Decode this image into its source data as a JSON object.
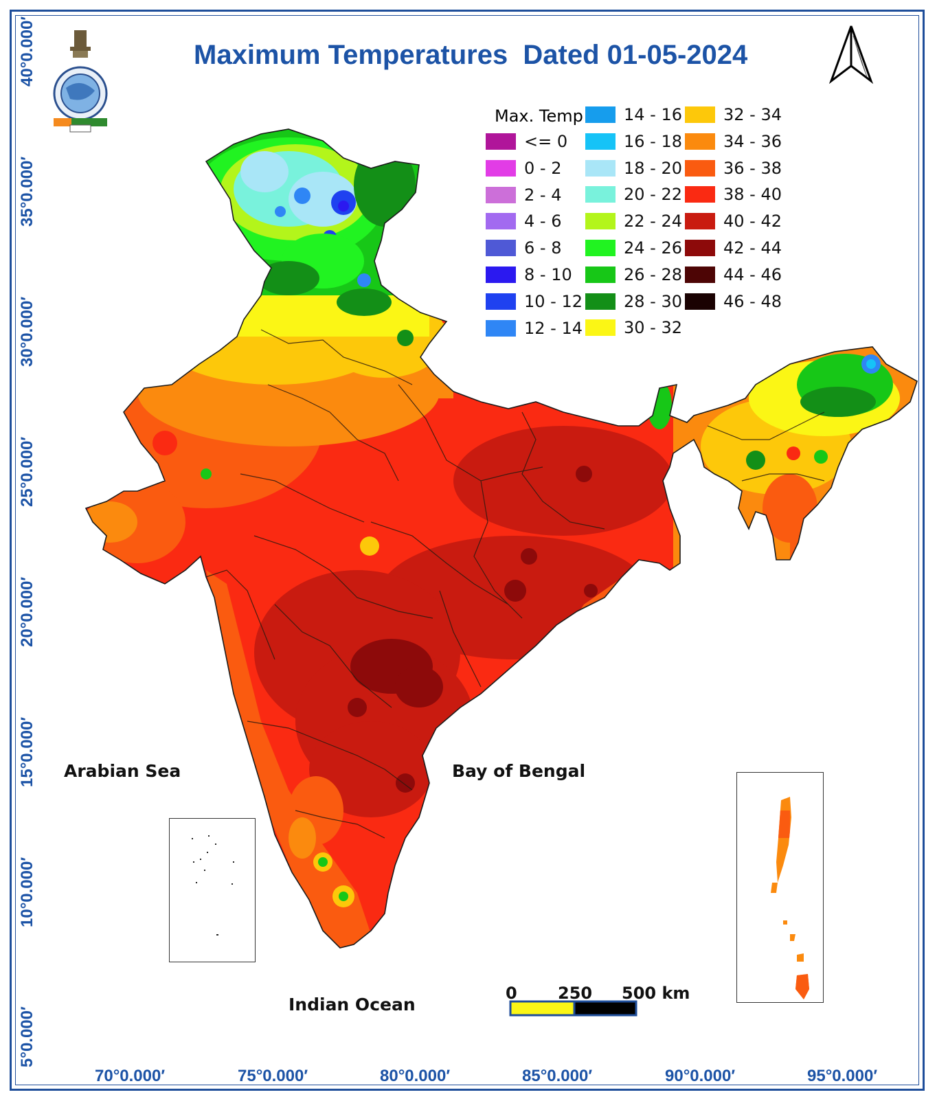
{
  "map": {
    "title": "Maximum Temperatures  Dated 01-05-2024",
    "legend_title": "Max. Temp",
    "legend": [
      {
        "label": "<= 0",
        "color": "#b0159a"
      },
      {
        "label": "0 - 2",
        "color": "#e23ce6"
      },
      {
        "label": "2 - 4",
        "color": "#cc6fd9"
      },
      {
        "label": "4 - 6",
        "color": "#a26af0"
      },
      {
        "label": "6 - 8",
        "color": "#4f59d6"
      },
      {
        "label": "8 - 10",
        "color": "#2b19f0"
      },
      {
        "label": "10 - 12",
        "color": "#1f41f0"
      },
      {
        "label": "12 - 14",
        "color": "#2f86f5"
      },
      {
        "label": "14 - 16",
        "color": "#169ded"
      },
      {
        "label": "16 - 18",
        "color": "#16c3f7"
      },
      {
        "label": "18 - 20",
        "color": "#a9e6f7"
      },
      {
        "label": "20 - 22",
        "color": "#79f2dc"
      },
      {
        "label": "22 - 24",
        "color": "#b3f51b"
      },
      {
        "label": "24 - 26",
        "color": "#21f321"
      },
      {
        "label": "26 - 28",
        "color": "#17c717"
      },
      {
        "label": "28 - 30",
        "color": "#138f17"
      },
      {
        "label": "30 - 32",
        "color": "#fbf615"
      },
      {
        "label": "32 - 34",
        "color": "#fdc80a"
      },
      {
        "label": "34 - 36",
        "color": "#fb8a0e"
      },
      {
        "label": "36 - 38",
        "color": "#fa5b10"
      },
      {
        "label": "38 - 40",
        "color": "#fa2a12"
      },
      {
        "label": "40 - 42",
        "color": "#c91b10"
      },
      {
        "label": "42 - 44",
        "color": "#8d0a0a"
      },
      {
        "label": "44 - 46",
        "color": "#4d0505"
      },
      {
        "label": "46 - 48",
        "color": "#1a0202"
      }
    ],
    "latitude_labels": [
      "40°0.000′",
      "35°0.000′",
      "30°0.000′",
      "25°0.000′",
      "20°0.000′",
      "15°0.000′",
      "10°0.000′",
      "5°0.000′"
    ],
    "longitude_labels": [
      "70°0.000′",
      "75°0.000′",
      "80°0.000′",
      "85°0.000′",
      "90°0.000′",
      "95°0.000′"
    ],
    "sea_labels": {
      "arabian_sea": "Arabian Sea",
      "bay_of_bengal": "Bay of Bengal",
      "indian_ocean": "Indian Ocean"
    },
    "scale_bar": {
      "zero": "0",
      "mid": "250",
      "end": "500 km"
    },
    "frame_color": "#1f4e9a",
    "title_color": "#1c53a6",
    "north_arrow_icon": "north-arrow-icon",
    "logo_icon": "imd-emblem-icon"
  }
}
